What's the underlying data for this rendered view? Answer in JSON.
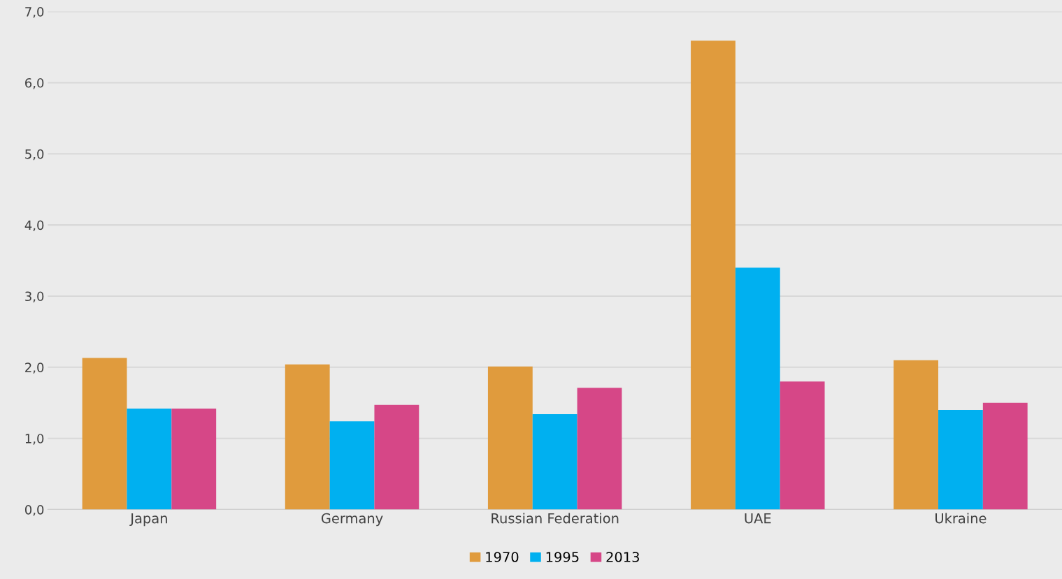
{
  "chart_data": {
    "type": "bar",
    "categories": [
      "Japan",
      "Germany",
      "Russian Federation",
      "UAE",
      "Ukraine"
    ],
    "series": [
      {
        "name": "1970",
        "color": "#e09b3d",
        "values": [
          2.13,
          2.04,
          2.01,
          6.59,
          2.1
        ]
      },
      {
        "name": "1995",
        "color": "#00b0f0",
        "values": [
          1.42,
          1.24,
          1.34,
          3.4,
          1.4
        ]
      },
      {
        "name": "2013",
        "color": "#d64787",
        "values": [
          1.42,
          1.47,
          1.71,
          1.8,
          1.5
        ]
      }
    ],
    "ylim": [
      0,
      7
    ],
    "yticks": [
      {
        "value": 0,
        "label": "0,0"
      },
      {
        "value": 1,
        "label": "1,0"
      },
      {
        "value": 2,
        "label": "2,0"
      },
      {
        "value": 3,
        "label": "3,0"
      },
      {
        "value": 4,
        "label": "4,0"
      },
      {
        "value": 5,
        "label": "5,0"
      },
      {
        "value": 6,
        "label": "6,0"
      },
      {
        "value": 7,
        "label": "7,0"
      }
    ],
    "grid": "y",
    "legend": "bottom"
  }
}
